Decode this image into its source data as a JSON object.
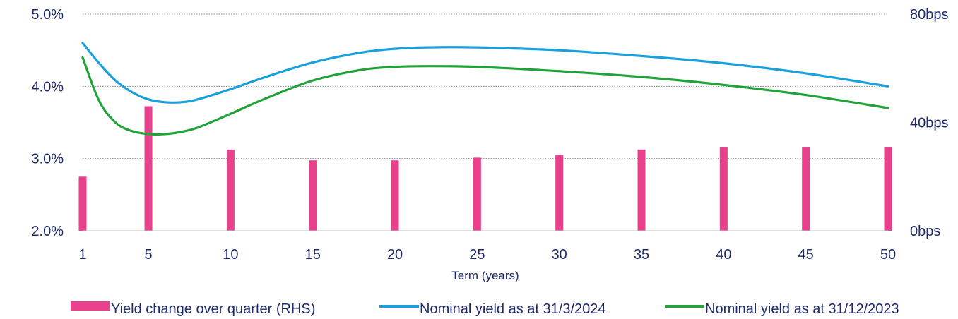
{
  "chart_data": {
    "type": "bar+line",
    "xlabel": "Term (years)",
    "x_ticks": [
      "1",
      "5",
      "10",
      "15",
      "20",
      "25",
      "30",
      "35",
      "40",
      "45",
      "50"
    ],
    "y_left": {
      "ticks": [
        "2.0%",
        "3.0%",
        "4.0%",
        "5.0%"
      ],
      "range": [
        2.0,
        5.0
      ]
    },
    "y_right": {
      "ticks": [
        "0bps",
        "40bps",
        "80bps"
      ],
      "range": [
        0,
        80
      ]
    },
    "grid": true,
    "legend_position": "bottom",
    "series": [
      {
        "name": "Yield change over quarter (RHS)",
        "type": "bar",
        "axis": "right",
        "color": "#e8408a",
        "x": [
          1,
          5,
          10,
          15,
          20,
          25,
          30,
          35,
          40,
          45,
          50
        ],
        "values": [
          20,
          46,
          30,
          26,
          26,
          27,
          28,
          30,
          31,
          31,
          31
        ]
      },
      {
        "name": "Nominal yield as at 31/3/2024",
        "type": "line",
        "axis": "left",
        "color": "#1aa0dc",
        "x": [
          1,
          2,
          3,
          4,
          5,
          6,
          7,
          8,
          10,
          12,
          15,
          18,
          20,
          22,
          25,
          30,
          35,
          40,
          45,
          50
        ],
        "values": [
          4.6,
          4.32,
          4.08,
          3.92,
          3.82,
          3.78,
          3.78,
          3.82,
          3.96,
          4.12,
          4.33,
          4.47,
          4.52,
          4.54,
          4.54,
          4.5,
          4.42,
          4.32,
          4.18,
          4.0
        ]
      },
      {
        "name": "Nominal yield as at 31/12/2023",
        "type": "line",
        "axis": "left",
        "color": "#21a33a",
        "x": [
          1,
          2,
          3,
          4,
          5,
          6,
          7,
          8,
          10,
          12,
          15,
          18,
          20,
          22,
          25,
          30,
          35,
          40,
          45,
          50
        ],
        "values": [
          4.4,
          3.8,
          3.5,
          3.38,
          3.34,
          3.34,
          3.37,
          3.43,
          3.62,
          3.82,
          4.08,
          4.23,
          4.27,
          4.28,
          4.27,
          4.21,
          4.13,
          4.02,
          3.88,
          3.7
        ]
      }
    ]
  }
}
